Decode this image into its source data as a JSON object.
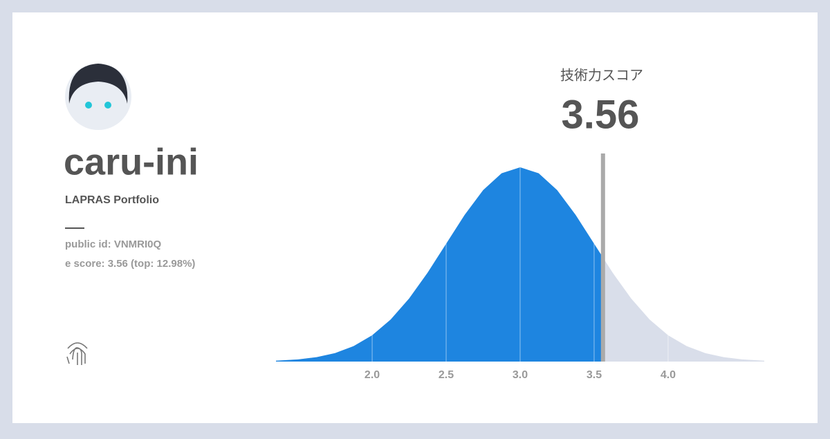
{
  "profile": {
    "name": "caru-ini",
    "subtitle": "LAPRAS Portfolio",
    "public_id": "public id: VNMRI0Q",
    "score_line": "e score: 3.56 (top: 12.98%)"
  },
  "chart_data": {
    "type": "distribution",
    "title": "技術力スコア",
    "score": 3.56,
    "xlim": [
      1.35,
      4.65
    ],
    "xticks": [
      {
        "value": 2,
        "label": "2.0"
      },
      {
        "value": 2.5,
        "label": "2.5"
      },
      {
        "value": 3,
        "label": "3.0"
      },
      {
        "value": 3.5,
        "label": "3.5"
      },
      {
        "value": 4,
        "label": "4.0"
      }
    ],
    "color": "#1e85e0",
    "rest_color": "#d9deea",
    "marker_color": "#aaaaaa",
    "grid": true
  }
}
